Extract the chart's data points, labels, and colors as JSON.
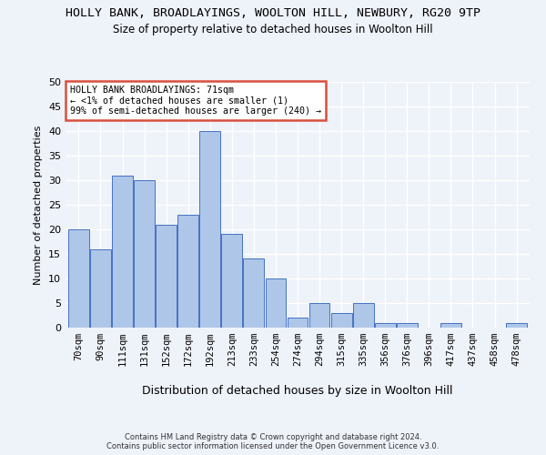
{
  "title": "HOLLY BANK, BROADLAYINGS, WOOLTON HILL, NEWBURY, RG20 9TP",
  "subtitle": "Size of property relative to detached houses in Woolton Hill",
  "xlabel": "Distribution of detached houses by size in Woolton Hill",
  "ylabel": "Number of detached properties",
  "footer_line1": "Contains HM Land Registry data © Crown copyright and database right 2024.",
  "footer_line2": "Contains public sector information licensed under the Open Government Licence v3.0.",
  "bar_labels": [
    "70sqm",
    "90sqm",
    "111sqm",
    "131sqm",
    "152sqm",
    "172sqm",
    "192sqm",
    "213sqm",
    "233sqm",
    "254sqm",
    "274sqm",
    "294sqm",
    "315sqm",
    "335sqm",
    "356sqm",
    "376sqm",
    "396sqm",
    "417sqm",
    "437sqm",
    "458sqm",
    "478sqm"
  ],
  "bar_values": [
    20,
    16,
    31,
    30,
    21,
    23,
    40,
    19,
    14,
    10,
    2,
    5,
    3,
    5,
    1,
    1,
    0,
    1,
    0,
    0,
    1
  ],
  "bar_color": "#aec6e8",
  "bar_edge_color": "#4472c4",
  "annotation_text": "HOLLY BANK BROADLAYINGS: 71sqm\n← <1% of detached houses are smaller (1)\n99% of semi-detached houses are larger (240) →",
  "annotation_box_color": "#d94f3d",
  "ylim": [
    0,
    50
  ],
  "yticks": [
    0,
    5,
    10,
    15,
    20,
    25,
    30,
    35,
    40,
    45,
    50
  ],
  "background_color": "#eef2f9",
  "plot_background": "#eef2f9",
  "grid_color": "#ffffff",
  "title_fontsize": 9.5,
  "subtitle_fontsize": 8.5
}
